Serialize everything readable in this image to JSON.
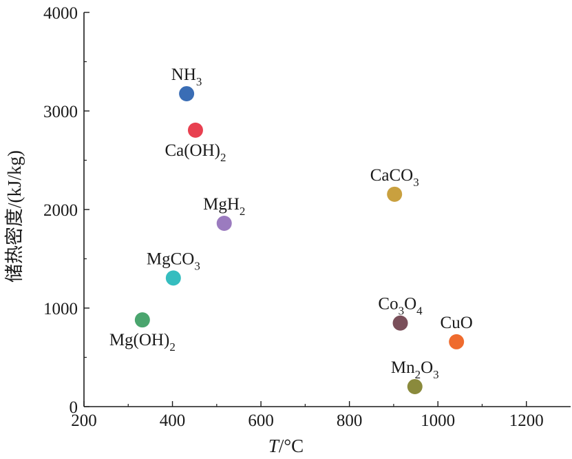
{
  "chart_data": {
    "type": "scatter",
    "title": "",
    "xlabel_italic": "T",
    "xlabel_unit": "/°C",
    "ylabel": "储热密度/(kJ/kg)",
    "xlim": [
      200,
      1300
    ],
    "ylim": [
      0,
      4000
    ],
    "xticks": [
      200,
      400,
      600,
      800,
      1000,
      1200
    ],
    "yticks": [
      0,
      1000,
      2000,
      3000,
      4000
    ],
    "grid": false,
    "points": [
      {
        "id": "nh3",
        "label": [
          {
            "t": "NH"
          },
          {
            "t": "3",
            "sub": true
          }
        ],
        "x": 432,
        "y": 3175,
        "color": "#3a6db5",
        "label_pos": "above"
      },
      {
        "id": "caoh2",
        "label": [
          {
            "t": "Ca(OH)"
          },
          {
            "t": "2",
            "sub": true
          }
        ],
        "x": 452,
        "y": 2805,
        "color": "#e84050",
        "label_pos": "below"
      },
      {
        "id": "mgh2",
        "label": [
          {
            "t": "MgH"
          },
          {
            "t": "2",
            "sub": true
          }
        ],
        "x": 517,
        "y": 1860,
        "color": "#9b7bbf",
        "label_pos": "above"
      },
      {
        "id": "mgco3",
        "label": [
          {
            "t": "MgCO"
          },
          {
            "t": "3",
            "sub": true
          }
        ],
        "x": 402,
        "y": 1305,
        "color": "#35bdbf",
        "label_pos": "above"
      },
      {
        "id": "mgoh2",
        "label": [
          {
            "t": "Mg(OH)"
          },
          {
            "t": "2",
            "sub": true
          }
        ],
        "x": 332,
        "y": 880,
        "color": "#4aa56e",
        "label_pos": "below"
      },
      {
        "id": "caco3",
        "label": [
          {
            "t": "CaCO"
          },
          {
            "t": "3",
            "sub": true
          }
        ],
        "x": 902,
        "y": 2155,
        "color": "#c9a03f",
        "label_pos": "above"
      },
      {
        "id": "co3o4",
        "label": [
          {
            "t": "Co"
          },
          {
            "t": "3",
            "sub": true
          },
          {
            "t": "O"
          },
          {
            "t": "4",
            "sub": true
          }
        ],
        "x": 915,
        "y": 848,
        "color": "#7a4f5a",
        "label_pos": "above"
      },
      {
        "id": "cuo",
        "label": [
          {
            "t": "CuO"
          }
        ],
        "x": 1042,
        "y": 658,
        "color": "#ef6b2e",
        "label_pos": "above"
      },
      {
        "id": "mn2o3",
        "label": [
          {
            "t": "Mn"
          },
          {
            "t": "2",
            "sub": true
          },
          {
            "t": "O"
          },
          {
            "t": "3",
            "sub": true
          }
        ],
        "x": 948,
        "y": 203,
        "color": "#8a8a3c",
        "label_pos": "above"
      }
    ]
  }
}
